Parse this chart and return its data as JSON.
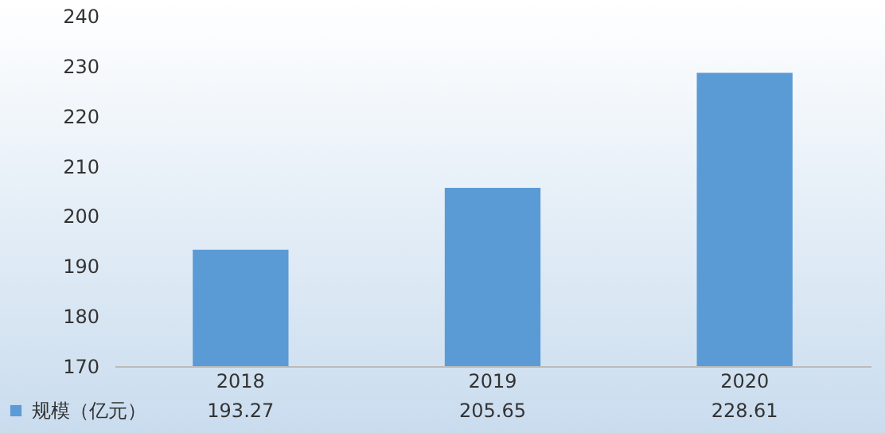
{
  "chart_data": {
    "type": "bar",
    "categories": [
      "2018",
      "2019",
      "2020"
    ],
    "series": [
      {
        "name": "规模（亿元）",
        "color": "#5b9bd5",
        "values": [
          193.27,
          205.65,
          228.61
        ]
      }
    ],
    "ylim": [
      170,
      240
    ],
    "yticks": [
      170,
      180,
      190,
      200,
      210,
      220,
      230,
      240
    ],
    "data_labels": true,
    "legend": "bottom left"
  }
}
